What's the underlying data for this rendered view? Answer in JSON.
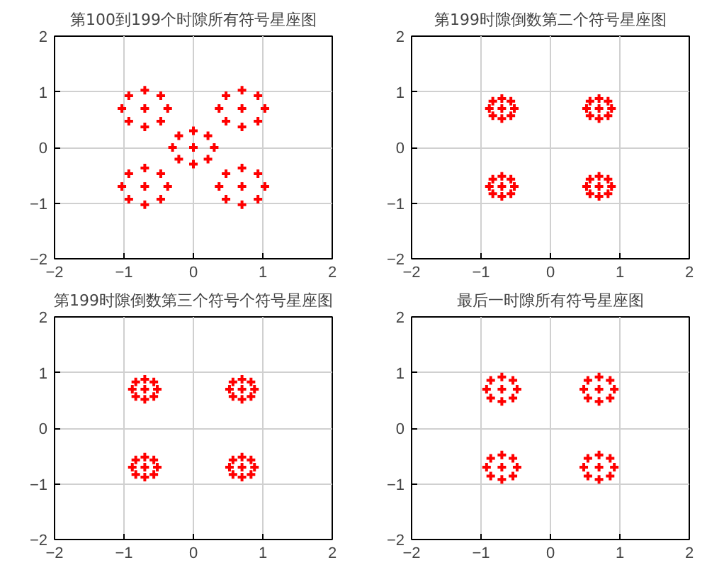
{
  "chart_data": [
    {
      "type": "scatter",
      "title": "第100到199个时隙所有符号星座图",
      "xlim": [
        -2,
        2
      ],
      "ylim": [
        -2,
        2
      ],
      "xticks": [
        -2,
        -1,
        0,
        1,
        2
      ],
      "yticks": [
        -2,
        -1,
        0,
        1,
        2
      ],
      "grid": true,
      "marker": "cross",
      "series": [
        {
          "color": "#ff0000",
          "x": [
            -0.7,
            -1.03,
            -0.37,
            -0.7,
            -0.7,
            -0.93,
            -0.47,
            -0.93,
            -0.47,
            0.7,
            0.37,
            1.03,
            0.7,
            0.7,
            0.47,
            0.93,
            0.47,
            0.93,
            0,
            -0.3,
            0.3,
            0,
            0,
            -0.21,
            0.21,
            -0.21,
            0.21,
            -0.7,
            -1.03,
            -0.37,
            -0.7,
            -0.7,
            -0.93,
            -0.47,
            -0.93,
            -0.47,
            0.7,
            0.37,
            1.03,
            0.7,
            0.7,
            0.47,
            0.93,
            0.47,
            0.93
          ],
          "values": [
            0.7,
            0.7,
            0.7,
            1.03,
            0.37,
            0.93,
            0.93,
            0.47,
            0.47,
            0.7,
            0.7,
            0.7,
            1.03,
            0.37,
            0.93,
            0.93,
            0.47,
            0.47,
            0,
            0,
            0,
            0.3,
            -0.3,
            0.21,
            0.21,
            -0.21,
            -0.21,
            -0.7,
            -0.7,
            -0.7,
            -0.37,
            -1.03,
            -0.47,
            -0.47,
            -0.93,
            -0.93,
            -0.7,
            -0.7,
            -0.7,
            -0.37,
            -1.03,
            -0.47,
            -0.47,
            -0.93,
            -0.93
          ]
        }
      ]
    },
    {
      "type": "scatter",
      "title": "第199时隙倒数第二个符号星座图",
      "xlim": [
        -2,
        2
      ],
      "ylim": [
        -2,
        2
      ],
      "xticks": [
        -2,
        -1,
        0,
        1,
        2
      ],
      "yticks": [
        -2,
        -1,
        0,
        1,
        2
      ],
      "grid": true,
      "marker": "cross",
      "series": [
        {
          "color": "#ff0000",
          "x": [
            -0.7,
            -0.88,
            -0.52,
            -0.7,
            -0.7,
            -0.83,
            -0.57,
            -0.83,
            -0.57,
            0.7,
            0.52,
            0.88,
            0.7,
            0.7,
            0.57,
            0.83,
            0.57,
            0.83,
            -0.7,
            -0.88,
            -0.52,
            -0.7,
            -0.7,
            -0.83,
            -0.57,
            -0.83,
            -0.57,
            0.7,
            0.52,
            0.88,
            0.7,
            0.7,
            0.57,
            0.83,
            0.57,
            0.83
          ],
          "values": [
            0.7,
            0.7,
            0.7,
            0.88,
            0.52,
            0.83,
            0.83,
            0.57,
            0.57,
            0.7,
            0.7,
            0.7,
            0.88,
            0.52,
            0.83,
            0.83,
            0.57,
            0.57,
            -0.7,
            -0.7,
            -0.7,
            -0.52,
            -0.88,
            -0.57,
            -0.57,
            -0.83,
            -0.83,
            -0.7,
            -0.7,
            -0.7,
            -0.52,
            -0.88,
            -0.57,
            -0.57,
            -0.83,
            -0.83
          ]
        }
      ]
    },
    {
      "type": "scatter",
      "title": "第199时隙倒数第三个符号个符号星座图",
      "xlim": [
        -2,
        2
      ],
      "ylim": [
        -2,
        2
      ],
      "xticks": [
        -2,
        -1,
        0,
        1,
        2
      ],
      "yticks": [
        -2,
        -1,
        0,
        1,
        2
      ],
      "grid": true,
      "marker": "cross",
      "series": [
        {
          "color": "#ff0000",
          "x": [
            -0.7,
            -0.88,
            -0.52,
            -0.7,
            -0.7,
            -0.83,
            -0.57,
            -0.83,
            -0.57,
            0.7,
            0.52,
            0.88,
            0.7,
            0.7,
            0.57,
            0.83,
            0.57,
            0.83,
            -0.7,
            -0.88,
            -0.52,
            -0.7,
            -0.7,
            -0.83,
            -0.57,
            -0.83,
            -0.57,
            0.7,
            0.52,
            0.88,
            0.7,
            0.7,
            0.57,
            0.83,
            0.57,
            0.83
          ],
          "values": [
            0.7,
            0.7,
            0.7,
            0.88,
            0.52,
            0.83,
            0.83,
            0.57,
            0.57,
            0.7,
            0.7,
            0.7,
            0.88,
            0.52,
            0.83,
            0.83,
            0.57,
            0.57,
            -0.7,
            -0.7,
            -0.7,
            -0.52,
            -0.88,
            -0.57,
            -0.57,
            -0.83,
            -0.83,
            -0.7,
            -0.7,
            -0.7,
            -0.52,
            -0.88,
            -0.57,
            -0.57,
            -0.83,
            -0.83
          ]
        }
      ]
    },
    {
      "type": "scatter",
      "title": "最后一时隙所有符号星座图",
      "xlim": [
        -2,
        2
      ],
      "ylim": [
        -2,
        2
      ],
      "xticks": [
        -2,
        -1,
        0,
        1,
        2
      ],
      "yticks": [
        -2,
        -1,
        0,
        1,
        2
      ],
      "grid": true,
      "marker": "cross",
      "series": [
        {
          "color": "#ff0000",
          "x": [
            -0.7,
            -0.92,
            -0.48,
            -0.7,
            -0.7,
            -0.86,
            -0.54,
            -0.86,
            -0.54,
            0.7,
            0.48,
            0.92,
            0.7,
            0.7,
            0.54,
            0.86,
            0.54,
            0.86,
            -0.7,
            -0.92,
            -0.48,
            -0.7,
            -0.7,
            -0.86,
            -0.54,
            -0.86,
            -0.54,
            0.7,
            0.48,
            0.92,
            0.7,
            0.7,
            0.54,
            0.86,
            0.54,
            0.86
          ],
          "values": [
            0.7,
            0.7,
            0.7,
            0.92,
            0.48,
            0.86,
            0.86,
            0.54,
            0.54,
            0.7,
            0.7,
            0.7,
            0.92,
            0.48,
            0.86,
            0.86,
            0.54,
            0.54,
            -0.7,
            -0.7,
            -0.7,
            -0.48,
            -0.92,
            -0.54,
            -0.54,
            -0.86,
            -0.86,
            -0.7,
            -0.7,
            -0.7,
            -0.48,
            -0.92,
            -0.54,
            -0.54,
            -0.86,
            -0.86
          ]
        }
      ]
    }
  ]
}
